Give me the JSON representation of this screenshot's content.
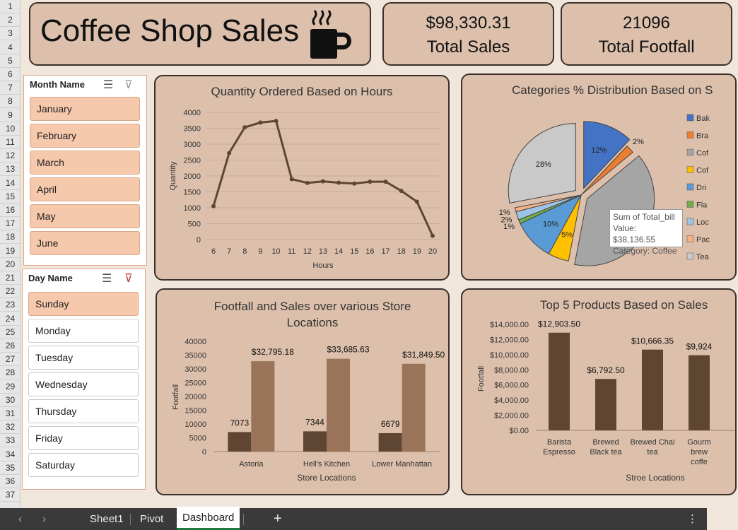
{
  "header": {
    "title": "Coffee Shop Sales"
  },
  "kpis": [
    {
      "value": "$98,330.31",
      "label": "Total Sales"
    },
    {
      "value": "21096",
      "label": "Total Footfall"
    }
  ],
  "month_slicer": {
    "title": "Month Name",
    "items": [
      {
        "label": "January",
        "selected": true
      },
      {
        "label": "February",
        "selected": true
      },
      {
        "label": "March",
        "selected": true
      },
      {
        "label": "April",
        "selected": true
      },
      {
        "label": "May",
        "selected": true
      },
      {
        "label": "June",
        "selected": true
      }
    ]
  },
  "day_slicer": {
    "title": "Day Name",
    "items": [
      {
        "label": "Sunday",
        "selected": true
      },
      {
        "label": "Monday",
        "selected": false
      },
      {
        "label": "Tuesday",
        "selected": false
      },
      {
        "label": "Wednesday",
        "selected": false
      },
      {
        "label": "Thursday",
        "selected": false
      },
      {
        "label": "Friday",
        "selected": false
      },
      {
        "label": "Saturday",
        "selected": false
      }
    ]
  },
  "tooltip": {
    "line1": "Sum of Total_bill",
    "line2": "Value: $38,136.55",
    "line3": "Category: Coffee"
  },
  "tabs": [
    "Sheet1",
    "Pivot",
    "Dashboard"
  ],
  "active_tab": "Dashboard",
  "row_numbers": [
    "1",
    "2",
    "3",
    "4",
    "5",
    "6",
    "7",
    "8",
    "9",
    "10",
    "11",
    "12",
    "13",
    "14",
    "15",
    "16",
    "17",
    "18",
    "19",
    "20",
    "21",
    "22",
    "23",
    "24",
    "25",
    "26",
    "27",
    "28",
    "29",
    "30",
    "31",
    "32",
    "33",
    "34",
    "35",
    "36",
    "37"
  ],
  "colors": {
    "panel": "#dcc0ac",
    "dark_brown": "#5f4632",
    "light_brown": "#9a7459",
    "selected": "#f6c9ad"
  },
  "chart_data": [
    {
      "type": "line",
      "title": "Quantity Ordered Based on Hours",
      "xlabel": "Hours",
      "ylabel": "Quantity",
      "x": [
        6,
        7,
        8,
        9,
        10,
        11,
        12,
        13,
        14,
        15,
        16,
        17,
        18,
        19,
        20
      ],
      "values": [
        1050,
        2720,
        3530,
        3680,
        3730,
        1900,
        1780,
        1830,
        1790,
        1760,
        1820,
        1820,
        1530,
        1190,
        120
      ],
      "ylim": [
        0,
        4000
      ],
      "yticks": [
        "0",
        "500",
        "1000",
        "1500",
        "2000",
        "2500",
        "3000",
        "3500",
        "4000"
      ]
    },
    {
      "type": "pie",
      "title": "Categories % Distribution Based on S",
      "labels": [
        "Bak",
        "Bra",
        "Cof",
        "Cof",
        "Dri",
        "Fla",
        "Loc",
        "Pac",
        "Tea"
      ],
      "values": [
        12,
        2,
        39,
        5,
        10,
        1,
        2,
        1,
        28
      ],
      "slice_labels": [
        "12%",
        "2%",
        "",
        "5%",
        "10%",
        "1%",
        "2%",
        "1%",
        "28%"
      ],
      "colors": [
        "#4472c4",
        "#ed7d31",
        "#a5a5a5",
        "#ffc000",
        "#5b9bd5",
        "#70ad47",
        "#9dc3e6",
        "#f4b183",
        "#c9c9c9"
      ],
      "legend_position": "right"
    },
    {
      "type": "bar",
      "title": "Footfall and Sales over various Store Locations",
      "xlabel": "Store Locations",
      "ylabel": "Footfall",
      "categories": [
        "Astoria",
        "Hell's Kitchen",
        "Lower Manhattan"
      ],
      "series": [
        {
          "values": [
            7073,
            7344,
            6679
          ],
          "labels": [
            "7073",
            "7344",
            "6679"
          ]
        },
        {
          "values": [
            32795.18,
            33685.63,
            31849.5
          ],
          "labels": [
            "$32,795.18",
            "$33,685.63",
            "$31,849.50"
          ]
        }
      ],
      "ylim": [
        0,
        40000
      ],
      "yticks": [
        "0",
        "5000",
        "10000",
        "15000",
        "20000",
        "25000",
        "30000",
        "35000",
        "40000"
      ]
    },
    {
      "type": "bar",
      "title": "Top 5 Products Based on Sales",
      "xlabel": "Stroe Locations",
      "ylabel": "Footfall",
      "categories": [
        [
          "Barista",
          "Espresso"
        ],
        [
          "Brewed",
          "Black tea"
        ],
        [
          "Brewed Chai",
          "tea"
        ],
        [
          "Gourm",
          "brew",
          "coffe"
        ]
      ],
      "values": [
        12903.5,
        6792.5,
        10666.35,
        9924
      ],
      "labels": [
        "$12,903.50",
        "$6,792.50",
        "$10,666.35",
        "$9,924"
      ],
      "ylim": [
        0,
        14000
      ],
      "yticks": [
        "$0.00",
        "$2,000.00",
        "$4,000.00",
        "$6,000.00",
        "$8,000.00",
        "$10,000.00",
        "$12,000.00",
        "$14,000.00"
      ]
    }
  ]
}
